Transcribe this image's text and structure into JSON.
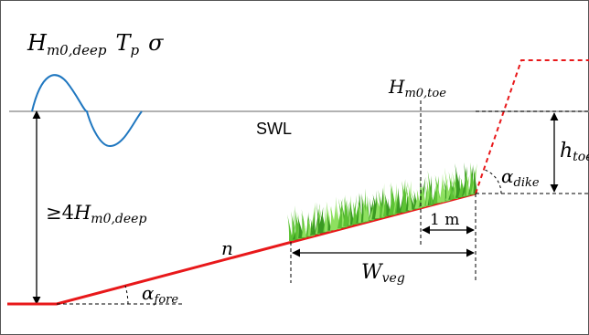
{
  "labels": {
    "wave_height_main": "H",
    "wave_height_sub": "m0,deep",
    "period_main": "T",
    "period_sub": "p",
    "spreading": "σ",
    "toe_height_main": "H",
    "toe_height_sub": "m0,toe",
    "swl": "SWL",
    "water_depth_toe_main": "h",
    "water_depth_toe_sub": "toe",
    "dike_angle_main": "α",
    "dike_angle_sub": "dike",
    "depth_requirement_prefix": "≥4",
    "depth_requirement_main": "H",
    "depth_requirement_sub": "m0,deep",
    "one_meter": "1 m",
    "roughness": "n",
    "veg_width_main": "W",
    "veg_width_sub": "veg",
    "foreshore_angle_main": "α",
    "foreshore_angle_sub": "fore"
  },
  "colors": {
    "wave": "#1f77c0",
    "swl_line": "#999999",
    "bed": "#e8181a",
    "dike": "#e8181a",
    "grass_light": "#7ed957",
    "grass_dark": "#2e8b1e",
    "border": "#555555"
  }
}
